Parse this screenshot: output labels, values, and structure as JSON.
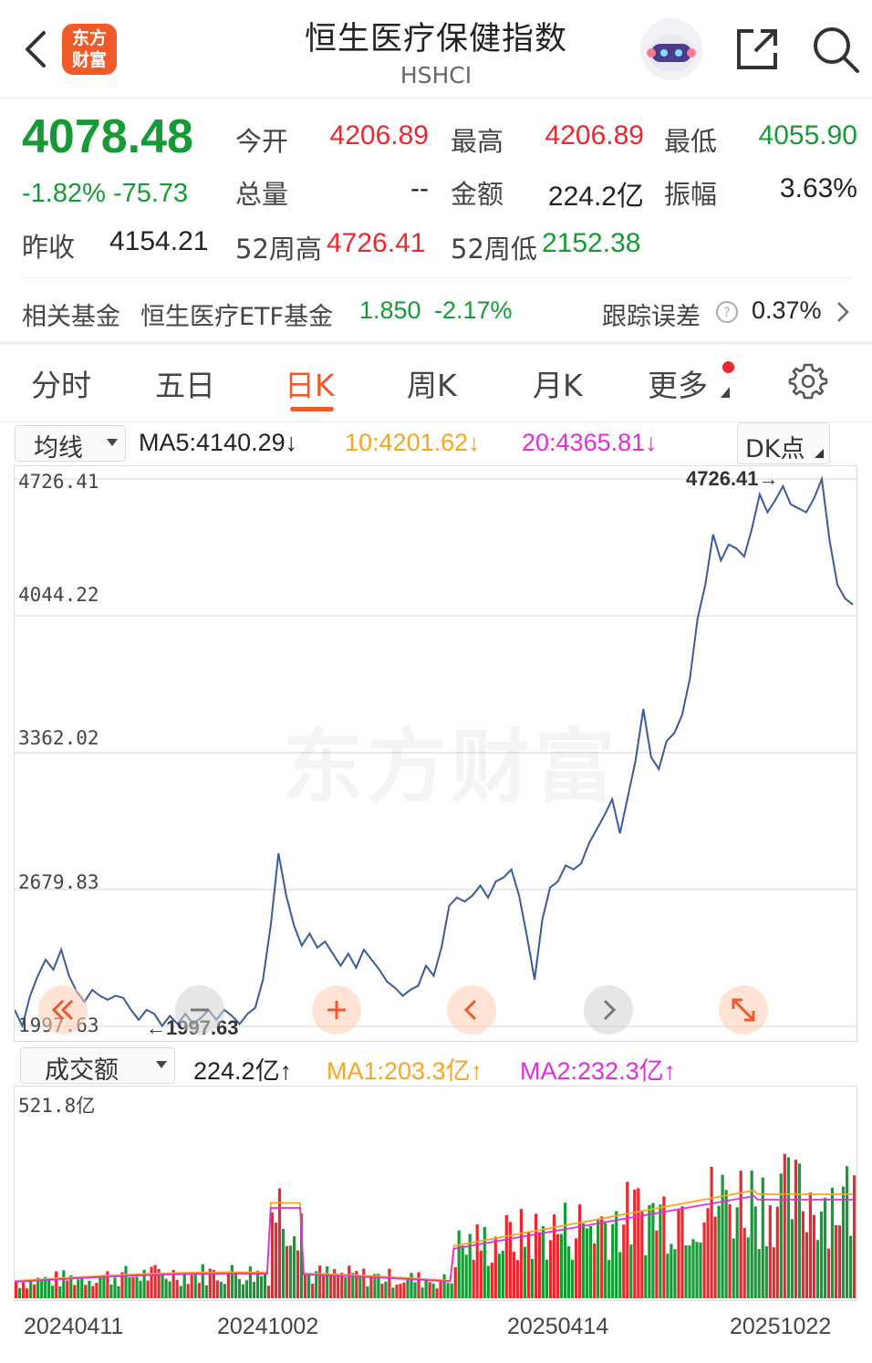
{
  "header": {
    "logo_line1": "东方",
    "logo_line2": "财富",
    "title": "恒生医疗保健指数",
    "subtitle": "HSHCI"
  },
  "quote": {
    "price": "4078.48",
    "change_pct": "-1.82%",
    "change": "-75.73",
    "prev_close_label": "昨收",
    "prev_close": "4154.21",
    "fields": [
      {
        "label": "今开",
        "value": "4206.89",
        "color": "#e8292f"
      },
      {
        "label": "最高",
        "value": "4206.89",
        "color": "#e8292f"
      },
      {
        "label": "最低",
        "value": "4055.90",
        "color": "#169a35"
      },
      {
        "label": "总量",
        "value": "--",
        "color": "#222222"
      },
      {
        "label": "金额",
        "value": "224.2亿",
        "color": "#222222"
      },
      {
        "label": "振幅",
        "value": "3.63%",
        "color": "#222222"
      },
      {
        "label": "52周高",
        "value": "4726.41",
        "color": "#e8292f"
      },
      {
        "label": "52周低",
        "value": "2152.38",
        "color": "#169a35"
      }
    ]
  },
  "fund": {
    "label": "相关基金",
    "name": "恒生医疗ETF基金",
    "price": "1.850",
    "pct": "-2.17%",
    "track_label": "跟踪误差",
    "track_value": "0.37%"
  },
  "tabs": [
    {
      "label": "分时"
    },
    {
      "label": "五日"
    },
    {
      "label": "日K"
    },
    {
      "label": "周K"
    },
    {
      "label": "月K"
    },
    {
      "label": "更多"
    }
  ],
  "active_tab": "日K",
  "ma_bar": {
    "indicator": "均线",
    "ma5": "MA5:4140.29↓",
    "ma10": "10:4201.62↓",
    "ma20": "20:4365.81↓",
    "dk": "DK点"
  },
  "vol_bar": {
    "indicator": "成交额",
    "vol": "224.2亿↑",
    "ma1": "MA1:203.3亿↑",
    "ma2": "MA2:232.3亿↑"
  },
  "chart_data": [
    {
      "type": "line",
      "series": [
        {
          "values": [
            2080,
            2000,
            2150,
            2250,
            2330,
            2280,
            2380,
            2250,
            2170,
            2120,
            2180,
            2150,
            2130,
            2150,
            2140,
            2080,
            2030,
            2080,
            2060,
            2000,
            2050,
            2010,
            2060,
            2010,
            2040,
            2080,
            2030,
            2080,
            2050,
            2010,
            2060,
            2090,
            2230,
            2500,
            2860,
            2650,
            2500,
            2400,
            2460,
            2390,
            2420,
            2360,
            2300,
            2360,
            2290,
            2380,
            2330,
            2280,
            2220,
            2190,
            2150,
            2180,
            2200,
            2300,
            2250,
            2390,
            2600,
            2640,
            2620,
            2650,
            2700,
            2640,
            2720,
            2740,
            2780,
            2650,
            2450,
            2230,
            2530,
            2690,
            2720,
            2800,
            2780,
            2810,
            2910,
            2980,
            3050,
            3130,
            2960,
            3140,
            3320,
            3580,
            3340,
            3280,
            3420,
            3460,
            3550,
            3730,
            4030,
            4200,
            4450,
            4320,
            4400,
            4380,
            4340,
            4480,
            4650,
            4560,
            4620,
            4690,
            4600,
            4580,
            4560,
            4630,
            4726,
            4420,
            4200,
            4130,
            4100
          ]
        }
      ],
      "y_labels": [
        "4726.41",
        "4044.22",
        "3362.02",
        "2679.83",
        "1997.63"
      ],
      "ylim": [
        1997.63,
        4726.41
      ],
      "annotations": {
        "high": "4726.41→",
        "low": "←1997.63"
      }
    },
    {
      "type": "bar",
      "y_labels": [
        "521.8亿"
      ],
      "ylim": [
        0,
        521.8
      ],
      "x_labels": [
        "20240411",
        "20241002",
        "20250414",
        "20251022"
      ]
    }
  ],
  "colors": {
    "up": "#e8292f",
    "down": "#169a35",
    "accent": "#f05a28",
    "line": "#3a5a9b",
    "ma1": "#f5a623",
    "ma2": "#e02fd8"
  }
}
